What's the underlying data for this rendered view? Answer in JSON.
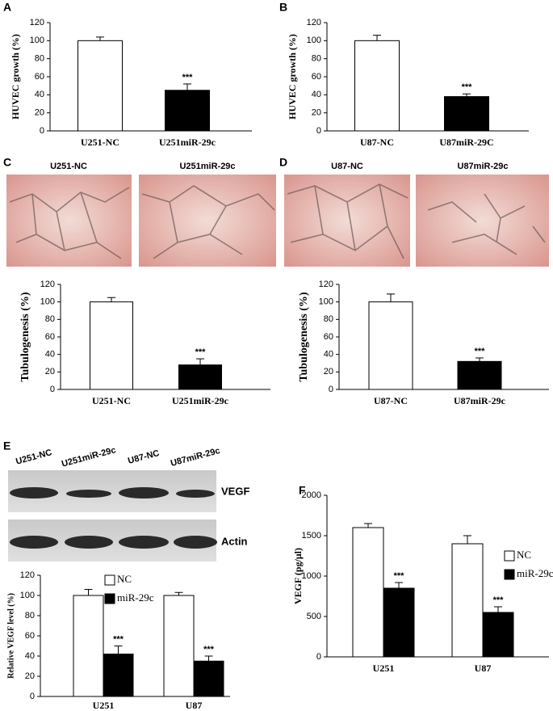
{
  "micrographs": [
    {
      "panel": "C",
      "labels": [
        "U251-NC",
        "U251miR-29c"
      ]
    },
    {
      "panel": "D",
      "labels": [
        "U87-NC",
        "U87miR-29c"
      ]
    }
  ],
  "western_blot": {
    "panel": "E",
    "lanes": [
      "U251-NC",
      "U251miR-29c",
      "U87-NC",
      "U87miR-29c"
    ],
    "bands": [
      "VEGF",
      "Actin"
    ]
  },
  "chart_data": [
    {
      "type": "bar",
      "panel": "A",
      "y_label": "HUVEC growth (%)",
      "categories": [
        "U251-NC",
        "U251miR-29c"
      ],
      "values": [
        100,
        45
      ],
      "errors": [
        4,
        7
      ],
      "colors": [
        "#ffffff",
        "#000000"
      ],
      "annotations": [
        null,
        "***"
      ],
      "ylim": [
        0,
        120
      ],
      "yticks": [
        0,
        20,
        40,
        60,
        80,
        100,
        120
      ]
    },
    {
      "type": "bar",
      "panel": "B",
      "y_label": "HUVEC growth (%)",
      "categories": [
        "U87-NC",
        "U87miR-29C"
      ],
      "values": [
        100,
        38
      ],
      "errors": [
        6,
        3
      ],
      "colors": [
        "#ffffff",
        "#000000"
      ],
      "annotations": [
        null,
        "***"
      ],
      "ylim": [
        0,
        120
      ],
      "yticks": [
        0,
        20,
        40,
        60,
        80,
        100,
        120
      ]
    },
    {
      "type": "bar",
      "y_label": "Tubulogenesis (%)",
      "categories": [
        "U251-NC",
        "U251miR-29c"
      ],
      "values": [
        100,
        28
      ],
      "errors": [
        5,
        7
      ],
      "colors": [
        "#ffffff",
        "#000000"
      ],
      "annotations": [
        null,
        "***"
      ],
      "ylim": [
        0,
        120
      ],
      "yticks": [
        0,
        20,
        40,
        60,
        80,
        100,
        120
      ]
    },
    {
      "type": "bar",
      "y_label": "Tubulogenesis (%)",
      "categories": [
        "U87-NC",
        "U87miR-29c"
      ],
      "values": [
        100,
        32
      ],
      "errors": [
        9,
        4
      ],
      "colors": [
        "#ffffff",
        "#000000"
      ],
      "annotations": [
        null,
        "***"
      ],
      "ylim": [
        0,
        120
      ],
      "yticks": [
        0,
        20,
        40,
        60,
        80,
        100,
        120
      ]
    },
    {
      "type": "grouped_bar",
      "y_label": "Relative VEGF level (%)",
      "categories": [
        "U251",
        "U87"
      ],
      "series": [
        {
          "name": "NC",
          "color": "#ffffff",
          "values": [
            100,
            100
          ],
          "errors": [
            6,
            3
          ]
        },
        {
          "name": "miR-29c",
          "color": "#000000",
          "values": [
            42,
            35
          ],
          "errors": [
            8,
            5
          ],
          "annotations": [
            "***",
            "***"
          ]
        }
      ],
      "ylim": [
        0,
        120
      ],
      "yticks": [
        0,
        20,
        40,
        60,
        80,
        100,
        120
      ]
    },
    {
      "type": "grouped_bar",
      "panel": "F",
      "y_label": "VEGF (pg/μl)",
      "categories": [
        "U251",
        "U87"
      ],
      "series": [
        {
          "name": "NC",
          "color": "#ffffff",
          "values": [
            1600,
            1400
          ],
          "errors": [
            50,
            100
          ]
        },
        {
          "name": "miR-29c",
          "color": "#000000",
          "values": [
            850,
            550
          ],
          "errors": [
            70,
            70
          ],
          "annotations": [
            "***",
            "***"
          ]
        }
      ],
      "ylim": [
        0,
        2000
      ],
      "yticks": [
        0,
        500,
        1000,
        1500,
        2000
      ]
    }
  ]
}
